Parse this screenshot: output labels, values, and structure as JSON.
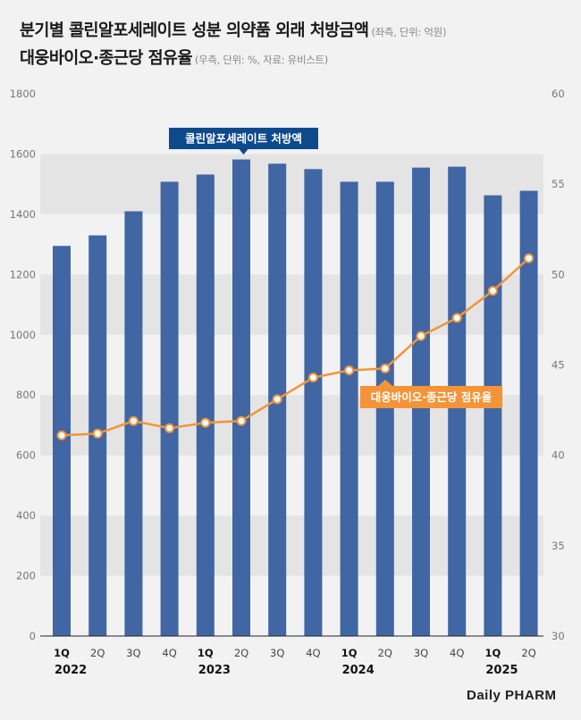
{
  "header": {
    "title_line1": "분기별 콜린알포세레이트 성분 의약품 외래 처방금액",
    "title_line1_note": "(좌측, 단위: 억원)",
    "title_line2": "대웅바이오·종근당 점유율",
    "title_line2_note": "(우측, 단위: %, 자료: 유비스트)"
  },
  "logo": "Daily PHARM",
  "colors": {
    "bar": "#4066a4",
    "line": "#f39438",
    "bar_label_bg": "#0d4a8c",
    "line_label_bg": "#f39438",
    "band": "#e4e4e4"
  },
  "chart_data": {
    "type": "bar+line",
    "categories": [
      "1Q",
      "2Q",
      "3Q",
      "4Q",
      "1Q",
      "2Q",
      "3Q",
      "4Q",
      "1Q",
      "2Q",
      "3Q",
      "4Q",
      "1Q",
      "2Q"
    ],
    "year_labels": [
      {
        "index": 0,
        "label": "2022"
      },
      {
        "index": 4,
        "label": "2023"
      },
      {
        "index": 8,
        "label": "2024"
      },
      {
        "index": 12,
        "label": "2025"
      }
    ],
    "series": [
      {
        "name": "콜린알포세레이트 처방액",
        "type": "bar",
        "axis": "left",
        "values": [
          1295,
          1330,
          1410,
          1508,
          1532,
          1582,
          1568,
          1550,
          1508,
          1508,
          1555,
          1558,
          1463,
          1478
        ]
      },
      {
        "name": "대웅바이오·종근당 점유율",
        "type": "line",
        "axis": "right",
        "values": [
          41.1,
          41.2,
          41.9,
          41.5,
          41.8,
          41.9,
          43.1,
          44.3,
          44.7,
          44.8,
          46.6,
          47.6,
          49.1,
          50.9
        ]
      }
    ],
    "y_left": {
      "min": 0,
      "max": 1800,
      "ticks": [
        0,
        200,
        400,
        600,
        800,
        1000,
        1200,
        1400,
        1600,
        1800
      ]
    },
    "y_right": {
      "min": 30,
      "max": 60,
      "ticks": [
        30,
        35,
        40,
        45,
        50,
        55,
        60
      ]
    },
    "grid": "alternating bands"
  }
}
